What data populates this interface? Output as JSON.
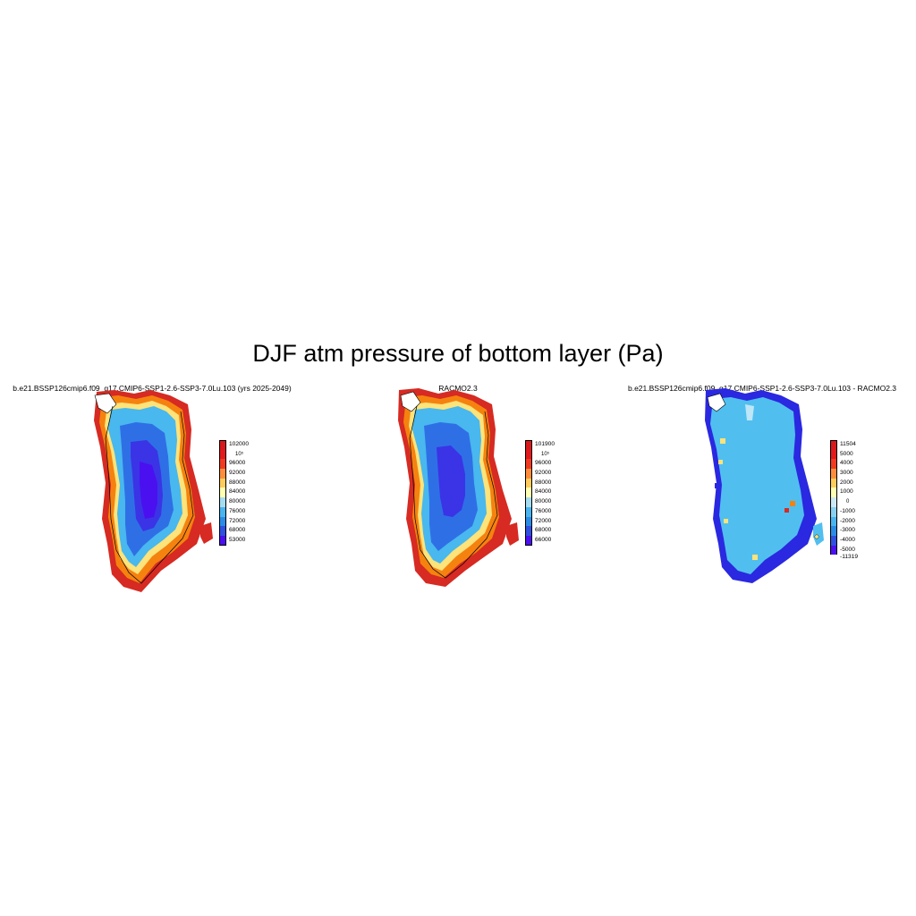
{
  "title": "DJF atm pressure of bottom layer (Pa)",
  "panels": [
    {
      "id": "model",
      "title": "b.e21.BSSP126cmip6.f09_g17.CMIP6-SSP1-2.6-SSP3-7.0Lu.103 (yrs 2025-2049)",
      "colorbar": {
        "colors": [
          "#d7191c",
          "#e31a1c",
          "#f03b20",
          "#fd8d3c",
          "#fecc5c",
          "#ffffb2",
          "#a6dcf0",
          "#4ab4ee",
          "#2b8ce6",
          "#3050e0",
          "#2a28e0",
          "#4b10f0"
        ],
        "labels": [
          "102000",
          "10⁵",
          "96000",
          "92000",
          "88000",
          "84000",
          "80000",
          "76000",
          "72000",
          "68000",
          "53000"
        ]
      }
    },
    {
      "id": "racmo",
      "title": "RACMO2.3",
      "colorbar": {
        "colors": [
          "#d7191c",
          "#e31a1c",
          "#f03b20",
          "#fd8d3c",
          "#fecc5c",
          "#ffffb2",
          "#a6dcf0",
          "#4ab4ee",
          "#2b8ce6",
          "#3050e0",
          "#2a28e0",
          "#4b10f0"
        ],
        "labels": [
          "101900",
          "10⁵",
          "96000",
          "92000",
          "88000",
          "84000",
          "80000",
          "76000",
          "72000",
          "68000",
          "66000"
        ]
      }
    },
    {
      "id": "diff",
      "title": "b.e21.BSSP126cmip6.f09_g17.CMIP6-SSP1-2.6-SSP3-7.0Lu.103 - RACMO2.3",
      "colorbar": {
        "colors": [
          "#d7191c",
          "#e31a1c",
          "#f03b20",
          "#fd8d3c",
          "#fecc5c",
          "#ffffb2",
          "#cde8f4",
          "#8ad0f0",
          "#4ab4ee",
          "#2b8ce6",
          "#3050e0",
          "#2a28e0",
          "#4b10f0"
        ],
        "labels": [
          "11504",
          "5000",
          "4000",
          "3000",
          "2000",
          "1000",
          "0",
          "-1000",
          "-2000",
          "-3000",
          "-4000",
          "-5000",
          "-11319"
        ]
      }
    }
  ],
  "colors": {
    "edge_red": "#d62a22",
    "orange": "#f5820f",
    "yellow": "#fde37a",
    "light_blue": "#48b8ee",
    "mid_blue": "#2f6fe6",
    "deep_blue": "#3a34e6",
    "violet": "#4b10f0",
    "diff_blue": "#50bff0",
    "coast": "#000000"
  }
}
